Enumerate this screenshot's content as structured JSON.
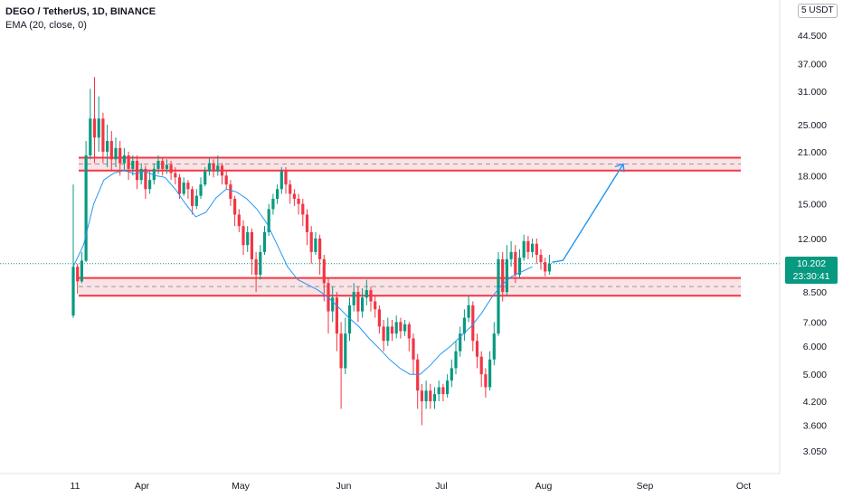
{
  "legend": {
    "title": "DEGO / TetherUS, 1D, BINANCE",
    "indicator": "EMA (20, close, 0)"
  },
  "currency_badge": {
    "count": "5",
    "unit": "USDT"
  },
  "price_tag": {
    "price": "10.202",
    "countdown": "23:30:41"
  },
  "colors": {
    "up": "#089981",
    "down": "#f23645",
    "ema": "#2196f3",
    "zone_fill": "#f8d7da",
    "zone_border": "#f23645",
    "arrow": "#2196f3",
    "last_price_line": "#089981"
  },
  "chart_data": {
    "type": "candlestick",
    "title": "DEGO / TetherUS, 1D, BINANCE",
    "scale": "log",
    "ylim": [
      2.8,
      55
    ],
    "y_ticks": [
      "44.500",
      "37.000",
      "31.000",
      "25.000",
      "21.000",
      "18.000",
      "15.000",
      "12.000",
      "8.500",
      "7.000",
      "6.000",
      "5.000",
      "4.200",
      "3.600",
      "3.050"
    ],
    "x_ticks": [
      "11",
      "Apr",
      "May",
      "Jun",
      "Jul",
      "Aug",
      "Sep",
      "Oct"
    ],
    "last_price": 10.202,
    "zones": [
      {
        "name": "resistance",
        "low": 18.6,
        "high": 20.2,
        "mid": 19.4
      },
      {
        "name": "support",
        "low": 8.3,
        "high": 9.3,
        "mid": 8.8
      }
    ],
    "projection": {
      "from": 10.3,
      "to": 19.4
    },
    "ema_series": [
      [
        0,
        10.0
      ],
      [
        6,
        11.5
      ],
      [
        12,
        15.0
      ],
      [
        18,
        17.5
      ],
      [
        24,
        18.3
      ],
      [
        30,
        18.6
      ],
      [
        36,
        18.2
      ],
      [
        42,
        18.5
      ],
      [
        48,
        18.0
      ],
      [
        54,
        17.8
      ],
      [
        60,
        16.5
      ],
      [
        66,
        15.0
      ],
      [
        72,
        13.8
      ],
      [
        78,
        14.2
      ],
      [
        84,
        15.6
      ],
      [
        90,
        16.5
      ],
      [
        96,
        16.2
      ],
      [
        102,
        15.5
      ],
      [
        108,
        14.5
      ],
      [
        114,
        13.2
      ],
      [
        120,
        11.5
      ],
      [
        126,
        10.0
      ],
      [
        132,
        9.2
      ],
      [
        138,
        8.9
      ],
      [
        144,
        8.6
      ],
      [
        150,
        8.2
      ],
      [
        156,
        7.7
      ],
      [
        162,
        7.2
      ],
      [
        168,
        6.8
      ],
      [
        174,
        6.3
      ],
      [
        180,
        5.9
      ],
      [
        186,
        5.5
      ],
      [
        192,
        5.2
      ],
      [
        198,
        5.0
      ],
      [
        204,
        5.0
      ],
      [
        210,
        5.3
      ],
      [
        216,
        5.7
      ],
      [
        222,
        6.0
      ],
      [
        228,
        6.4
      ],
      [
        234,
        6.8
      ],
      [
        240,
        7.4
      ],
      [
        246,
        8.2
      ],
      [
        252,
        8.9
      ],
      [
        258,
        9.4
      ],
      [
        264,
        9.7
      ],
      [
        270,
        10.0
      ]
    ],
    "candles": [
      [
        7.3,
        10.0,
        7.2,
        17.0
      ],
      [
        10.0,
        9.1,
        8.4,
        10.2
      ],
      [
        9.1,
        10.4,
        9.0,
        11.0
      ],
      [
        10.4,
        20.5,
        10.3,
        22.5
      ],
      [
        20.5,
        26.0,
        20.0,
        31.5
      ],
      [
        26.0,
        23.0,
        19.5,
        34.0
      ],
      [
        23.0,
        26.0,
        21.0,
        30.0
      ],
      [
        26.0,
        21.0,
        19.5,
        27.0
      ],
      [
        21.0,
        22.5,
        19.0,
        25.0
      ],
      [
        22.5,
        20.0,
        18.5,
        24.0
      ],
      [
        20.0,
        21.5,
        19.0,
        23.0
      ],
      [
        21.5,
        19.5,
        18.0,
        22.5
      ],
      [
        19.5,
        20.5,
        18.5,
        21.5
      ],
      [
        20.5,
        18.8,
        17.5,
        21.0
      ],
      [
        18.8,
        19.8,
        18.0,
        20.5
      ],
      [
        19.8,
        17.5,
        16.5,
        20.5
      ],
      [
        17.5,
        18.8,
        17.0,
        19.5
      ],
      [
        18.8,
        16.5,
        15.5,
        19.2
      ],
      [
        16.5,
        17.5,
        16.0,
        18.5
      ],
      [
        17.5,
        18.8,
        17.0,
        19.5
      ],
      [
        18.8,
        19.8,
        18.2,
        20.5
      ],
      [
        19.8,
        18.8,
        18.0,
        20.2
      ],
      [
        18.8,
        19.3,
        18.2,
        20.0
      ],
      [
        19.3,
        18.3,
        17.5,
        19.8
      ],
      [
        18.3,
        17.8,
        17.0,
        19.0
      ],
      [
        17.8,
        16.0,
        15.5,
        18.2
      ],
      [
        16.0,
        17.2,
        15.8,
        17.8
      ],
      [
        17.2,
        16.5,
        15.5,
        17.5
      ],
      [
        16.5,
        14.8,
        14.0,
        16.8
      ],
      [
        14.8,
        15.8,
        14.5,
        16.5
      ],
      [
        15.8,
        17.0,
        15.5,
        17.8
      ],
      [
        17.0,
        18.5,
        16.8,
        19.0
      ],
      [
        18.5,
        19.5,
        18.0,
        20.2
      ],
      [
        19.5,
        18.5,
        17.8,
        20.0
      ],
      [
        18.5,
        19.2,
        18.0,
        20.5
      ],
      [
        19.2,
        18.0,
        17.0,
        19.5
      ],
      [
        18.0,
        17.0,
        16.5,
        18.5
      ],
      [
        17.0,
        15.5,
        14.8,
        17.5
      ],
      [
        15.5,
        14.0,
        13.0,
        15.8
      ],
      [
        14.0,
        13.0,
        12.5,
        14.5
      ],
      [
        13.0,
        11.5,
        10.8,
        13.5
      ],
      [
        11.5,
        12.5,
        11.0,
        13.0
      ],
      [
        12.5,
        10.5,
        9.5,
        12.8
      ],
      [
        10.5,
        9.5,
        8.5,
        11.0
      ],
      [
        9.5,
        11.0,
        9.2,
        11.5
      ],
      [
        11.0,
        12.5,
        10.8,
        13.0
      ],
      [
        12.5,
        14.5,
        12.2,
        15.0
      ],
      [
        14.5,
        15.5,
        14.0,
        16.0
      ],
      [
        15.5,
        16.5,
        15.0,
        17.0
      ],
      [
        16.5,
        18.5,
        16.0,
        19.0
      ],
      [
        18.5,
        17.0,
        16.0,
        19.0
      ],
      [
        17.0,
        16.0,
        15.0,
        17.5
      ],
      [
        16.0,
        15.5,
        14.8,
        16.5
      ],
      [
        15.5,
        15.0,
        14.0,
        16.0
      ],
      [
        15.0,
        14.0,
        13.0,
        15.5
      ],
      [
        14.0,
        12.5,
        11.5,
        14.5
      ],
      [
        12.5,
        11.0,
        10.2,
        13.0
      ],
      [
        11.0,
        12.0,
        10.8,
        12.5
      ],
      [
        12.0,
        10.5,
        9.5,
        12.3
      ],
      [
        10.5,
        9.0,
        8.0,
        10.8
      ],
      [
        9.0,
        7.5,
        6.5,
        9.3
      ],
      [
        7.5,
        8.2,
        7.0,
        8.8
      ],
      [
        8.2,
        6.5,
        5.8,
        8.5
      ],
      [
        6.5,
        5.2,
        4.0,
        7.0
      ],
      [
        5.2,
        6.5,
        5.0,
        7.2
      ],
      [
        6.5,
        7.8,
        6.2,
        8.2
      ],
      [
        7.8,
        8.5,
        7.5,
        9.0
      ],
      [
        8.5,
        7.5,
        7.0,
        8.8
      ],
      [
        7.5,
        8.2,
        7.2,
        8.7
      ],
      [
        8.2,
        8.6,
        7.8,
        9.2
      ],
      [
        8.6,
        8.0,
        7.5,
        8.8
      ],
      [
        8.0,
        7.6,
        7.2,
        8.3
      ],
      [
        7.6,
        6.8,
        6.5,
        7.8
      ],
      [
        6.8,
        6.2,
        5.8,
        7.1
      ],
      [
        6.2,
        6.8,
        6.0,
        7.2
      ],
      [
        6.8,
        6.5,
        6.2,
        7.1
      ],
      [
        6.5,
        7.0,
        6.3,
        7.3
      ],
      [
        7.0,
        6.6,
        6.3,
        7.2
      ],
      [
        6.6,
        6.9,
        6.4,
        7.1
      ],
      [
        6.9,
        6.3,
        5.8,
        7.0
      ],
      [
        6.3,
        5.5,
        5.0,
        6.5
      ],
      [
        5.5,
        4.5,
        4.0,
        5.7
      ],
      [
        4.5,
        4.2,
        3.6,
        4.7
      ],
      [
        4.2,
        4.5,
        4.0,
        4.8
      ],
      [
        4.5,
        4.2,
        4.0,
        4.7
      ],
      [
        4.2,
        4.4,
        4.0,
        4.6
      ],
      [
        4.4,
        4.6,
        4.2,
        4.8
      ],
      [
        4.6,
        4.4,
        4.2,
        4.7
      ],
      [
        4.4,
        4.8,
        4.3,
        5.0
      ],
      [
        4.8,
        5.2,
        4.6,
        5.5
      ],
      [
        5.2,
        5.8,
        5.0,
        6.2
      ],
      [
        5.8,
        6.5,
        5.6,
        6.8
      ],
      [
        6.5,
        7.2,
        6.2,
        7.6
      ],
      [
        7.2,
        7.8,
        7.0,
        8.3
      ],
      [
        7.8,
        6.2,
        5.8,
        8.0
      ],
      [
        6.2,
        5.6,
        5.2,
        6.5
      ],
      [
        5.6,
        5.0,
        4.6,
        5.8
      ],
      [
        5.0,
        4.6,
        4.3,
        5.2
      ],
      [
        4.6,
        5.5,
        4.5,
        5.8
      ],
      [
        5.5,
        6.5,
        5.3,
        7.0
      ],
      [
        6.5,
        10.5,
        6.4,
        11.0
      ],
      [
        10.5,
        8.5,
        8.0,
        11.0
      ],
      [
        8.5,
        10.5,
        8.3,
        11.5
      ],
      [
        10.5,
        11.0,
        10.0,
        11.8
      ],
      [
        11.0,
        9.5,
        9.0,
        11.5
      ],
      [
        9.5,
        10.6,
        9.3,
        11.2
      ],
      [
        10.6,
        11.8,
        10.4,
        12.3
      ],
      [
        11.8,
        11.0,
        10.5,
        12.2
      ],
      [
        11.0,
        11.6,
        10.6,
        12.0
      ],
      [
        11.6,
        10.8,
        10.2,
        12.0
      ],
      [
        10.8,
        10.3,
        9.8,
        11.2
      ],
      [
        10.3,
        9.7,
        9.4,
        10.6
      ],
      [
        9.7,
        10.2,
        9.5,
        10.8
      ]
    ]
  }
}
